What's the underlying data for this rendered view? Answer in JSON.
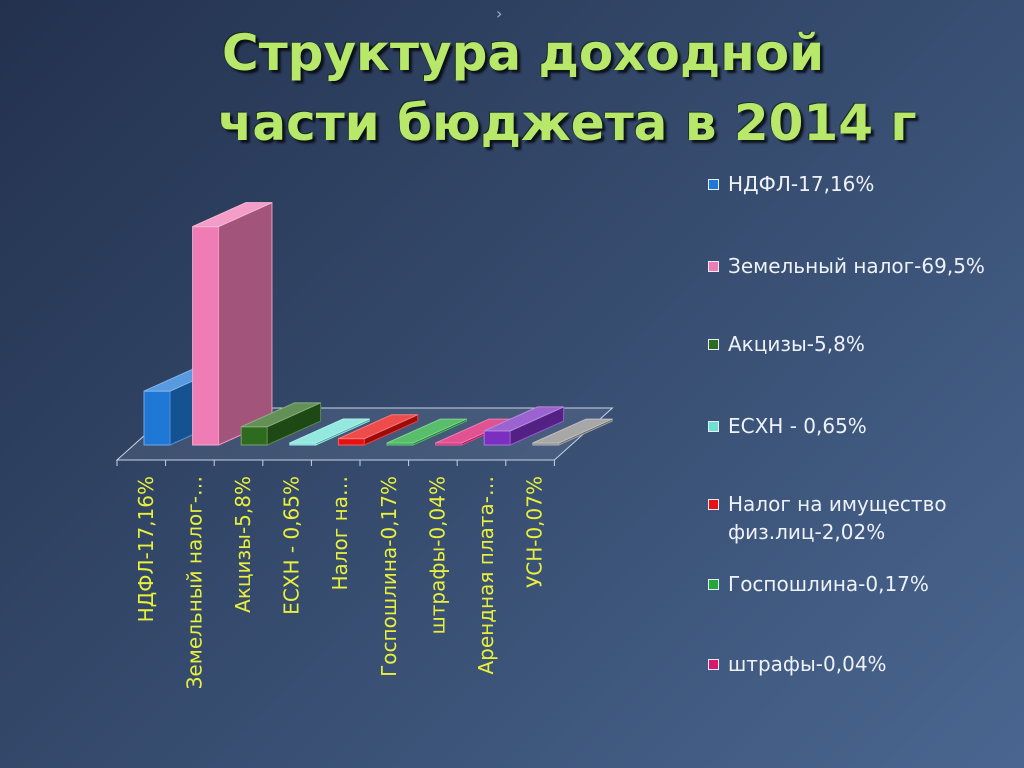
{
  "title": {
    "line1": "Структура доходной",
    "line2": "части бюджета в 2014 г"
  },
  "chart_data": {
    "type": "bar",
    "title": "Структура доходной части бюджета в 2014 г",
    "categories": [
      "НДФЛ-17,16%",
      "Земельный налог-…",
      "Акцизы-5,8%",
      "ЕСХН - 0,65%",
      "Налог на…",
      "Госпошлина-0,17%",
      "штрафы-0,04%",
      "Арендная плата-…",
      "УСН-0,07%"
    ],
    "series": [
      {
        "name": "НДФЛ-17,16%",
        "color": "#1f78d6",
        "values": [
          17.16,
          null,
          null,
          null,
          null,
          null,
          null,
          null,
          null
        ]
      },
      {
        "name": "Земельный налог-69,5%",
        "color": "#f07cb5",
        "values": [
          null,
          69.5,
          null,
          null,
          null,
          null,
          null,
          null,
          null
        ]
      },
      {
        "name": "Акцизы-5,8%",
        "color": "#2e6b1e",
        "values": [
          null,
          null,
          5.8,
          null,
          null,
          null,
          null,
          null,
          null
        ]
      },
      {
        "name": "ЕСХН - 0,65%",
        "color": "#6fe0d6",
        "values": [
          null,
          null,
          null,
          0.65,
          null,
          null,
          null,
          null,
          null
        ]
      },
      {
        "name": "Налог на имущество физ.лиц-2,02%",
        "color": "#e81010",
        "values": [
          null,
          null,
          null,
          null,
          2.02,
          null,
          null,
          null,
          null
        ]
      },
      {
        "name": "Госпошлина-0,17%",
        "color": "#22a83a",
        "values": [
          null,
          null,
          null,
          null,
          null,
          0.17,
          null,
          null,
          null
        ]
      },
      {
        "name": "штрафы-0,04%",
        "color": "#d8186e",
        "values": [
          null,
          null,
          null,
          null,
          null,
          null,
          0.04,
          null,
          null
        ]
      },
      {
        "name": "Арендная плата",
        "color": "#7a2fc0",
        "values": [
          null,
          null,
          null,
          null,
          null,
          null,
          null,
          4.5,
          null
        ]
      },
      {
        "name": "УСН-0,07%",
        "color": "#8a8a8a",
        "values": [
          null,
          null,
          null,
          null,
          null,
          null,
          null,
          null,
          0.07
        ]
      }
    ],
    "ylim": [
      0,
      70
    ],
    "grid": false,
    "legend_position": "right",
    "style": "3d-column"
  },
  "legend": [
    {
      "text": "НДФЛ-17,16%",
      "color": "#1f78d6"
    },
    {
      "text": "Земельный налог-69,5%",
      "color": "#f07cb5"
    },
    {
      "text": "Акцизы-5,8%",
      "color": "#2e6b1e"
    },
    {
      "text": "ЕСХН - 0,65%",
      "color": "#6fe0d6"
    },
    {
      "text": "Налог на имущество физ.лиц-2,02%",
      "color": "#e81010"
    },
    {
      "text": "Госпошлина-0,17%",
      "color": "#22a83a"
    },
    {
      "text": "штрафы-0,04%",
      "color": "#d8186e"
    }
  ]
}
